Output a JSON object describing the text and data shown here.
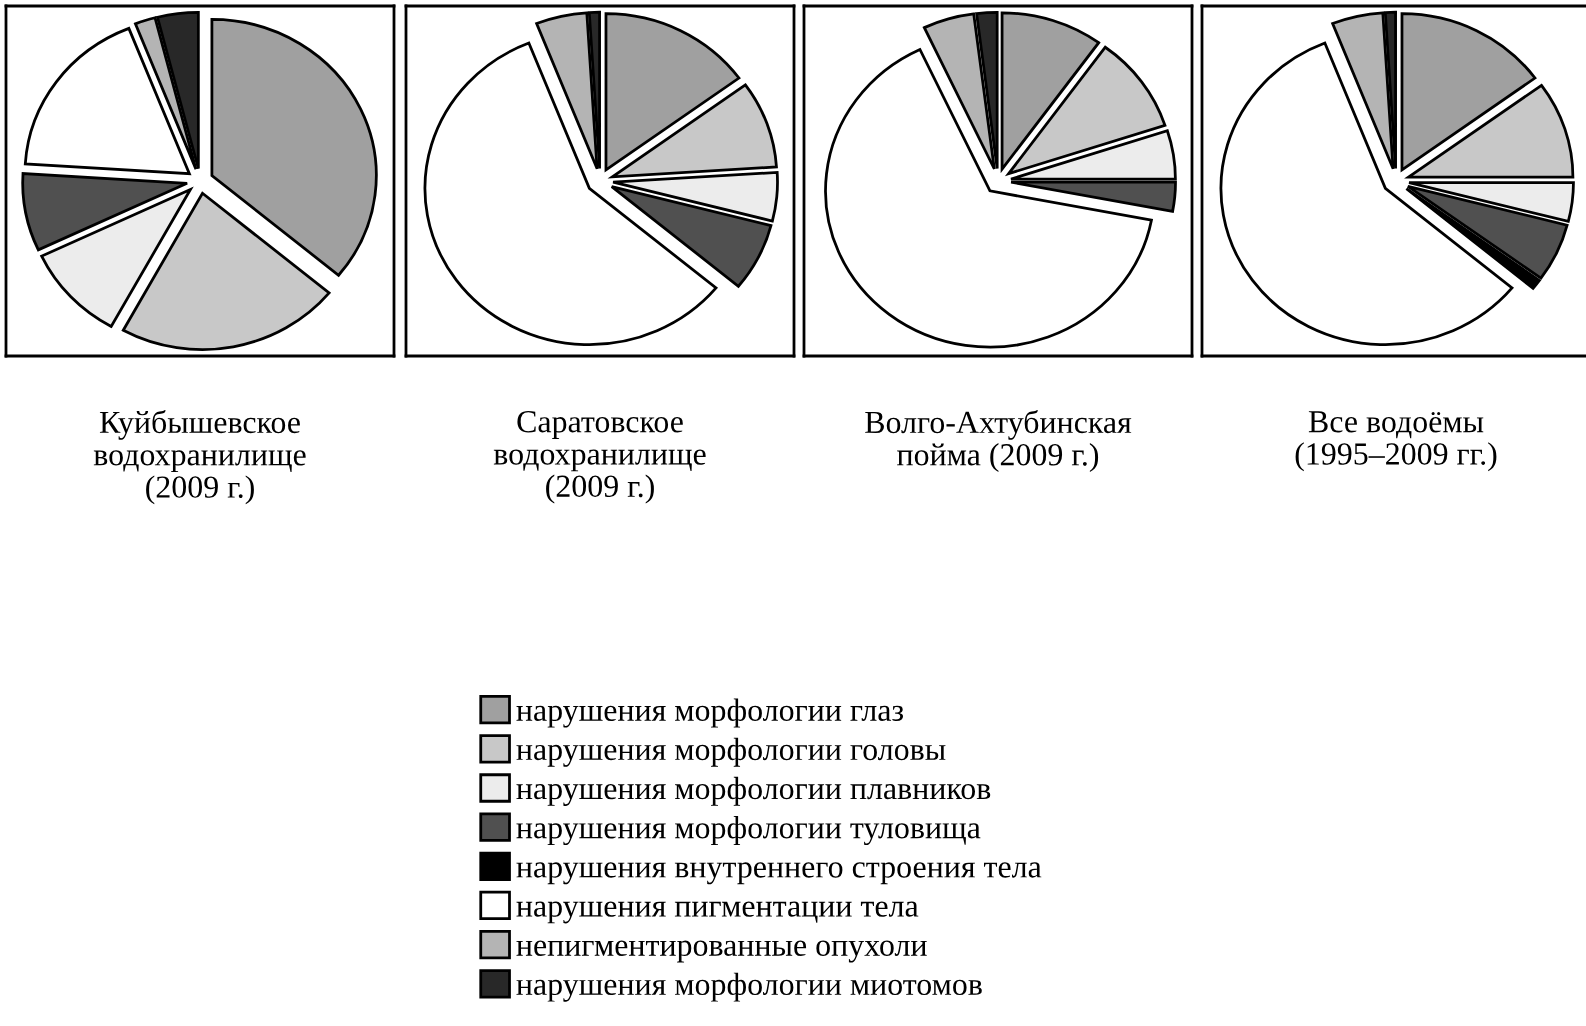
{
  "chart_data": [
    {
      "type": "pie",
      "title": "Куйбышевское\nводохранилище\n(2009 г.)",
      "categories": [
        "нарушения морфологии глаз",
        "нарушения морфологии головы",
        "нарушения морфологии плавников",
        "нарушения морфологии туловища",
        "нарушения внутреннего строения тела",
        "нарушения пигментации тела",
        "непигментированные опухоли",
        "нарушения морфологии миотомов"
      ],
      "values": [
        36,
        22,
        10,
        8,
        0,
        18,
        2,
        4
      ],
      "colors": [
        "#a0a0a0",
        "#c8c8c8",
        "#ececec",
        "#505050",
        "#000000",
        "#ffffff",
        "#b4b4b4",
        "#282828"
      ],
      "legend": "bottom"
    },
    {
      "type": "pie",
      "title": "Саратовское\nводохранилище\n(2009 г.)",
      "values": [
        15,
        9,
        5,
        7,
        0,
        58,
        5,
        1
      ],
      "colors": [
        "#a0a0a0",
        "#c8c8c8",
        "#ececec",
        "#505050",
        "#000000",
        "#ffffff",
        "#b4b4b4",
        "#282828"
      ]
    },
    {
      "type": "pie",
      "title": "Волго-Ахтубинская\nпойма (2009 г.)",
      "values": [
        10,
        10,
        5,
        3,
        0,
        65,
        5,
        2
      ],
      "colors": [
        "#a0a0a0",
        "#c8c8c8",
        "#ececec",
        "#505050",
        "#000000",
        "#ffffff",
        "#b4b4b4",
        "#282828"
      ]
    },
    {
      "type": "pie",
      "title": "Все водоёмы\n(1995–2009 гг.)",
      "values": [
        15,
        10,
        4,
        6,
        1,
        58,
        5,
        1
      ],
      "colors": [
        "#a0a0a0",
        "#c8c8c8",
        "#ececec",
        "#505050",
        "#000000",
        "#ffffff",
        "#b4b4b4",
        "#282828"
      ]
    }
  ]
}
